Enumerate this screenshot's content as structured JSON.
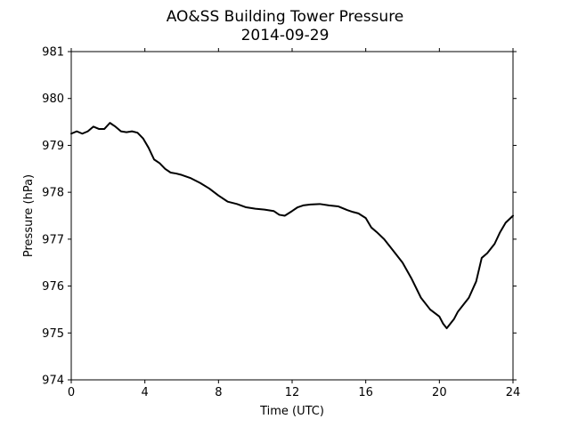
{
  "chart_data": {
    "type": "line",
    "title": "AO&SS Building Tower Pressure",
    "subtitle": "2014-09-29",
    "xlabel": "Time (UTC)",
    "ylabel": "Pressure (hPa)",
    "xlim": [
      0,
      24
    ],
    "ylim": [
      974,
      981
    ],
    "xticks": [
      0,
      4,
      8,
      12,
      16,
      20,
      24
    ],
    "yticks": [
      974,
      975,
      976,
      977,
      978,
      979,
      980,
      981
    ],
    "grid": false,
    "line_color": "#000000",
    "series": [
      {
        "x": [
          0,
          0.3,
          0.6,
          0.9,
          1.2,
          1.5,
          1.8,
          2.1,
          2.4,
          2.7,
          3.0,
          3.3,
          3.6,
          3.9,
          4.2,
          4.5,
          4.8,
          5.1,
          5.4,
          5.7,
          6.0,
          6.5,
          7.0,
          7.5,
          8.0,
          8.5,
          9.0,
          9.5,
          10.0,
          10.5,
          11.0,
          11.3,
          11.6,
          12.0,
          12.3,
          12.6,
          13.0,
          13.5,
          14.0,
          14.5,
          15.0,
          15.3,
          15.6,
          16.0,
          16.3,
          16.6,
          17.0,
          17.5,
          18.0,
          18.5,
          19.0,
          19.5,
          20.0,
          20.2,
          20.4,
          20.6,
          20.8,
          21.0,
          21.3,
          21.6,
          22.0,
          22.3,
          22.6,
          23.0,
          23.3,
          23.6,
          24.0
        ],
        "y": [
          979.25,
          979.3,
          979.25,
          979.3,
          979.4,
          979.35,
          979.35,
          979.48,
          979.4,
          979.3,
          979.28,
          979.3,
          979.27,
          979.15,
          978.95,
          978.7,
          978.62,
          978.5,
          978.42,
          978.4,
          978.37,
          978.3,
          978.2,
          978.08,
          977.93,
          977.8,
          977.75,
          977.68,
          977.65,
          977.63,
          977.6,
          977.52,
          977.5,
          977.6,
          977.68,
          977.72,
          977.74,
          977.75,
          977.72,
          977.7,
          977.62,
          977.58,
          977.55,
          977.45,
          977.25,
          977.15,
          977.0,
          976.75,
          976.5,
          976.15,
          975.75,
          975.5,
          975.35,
          975.2,
          975.1,
          975.2,
          975.3,
          975.45,
          975.6,
          975.75,
          976.1,
          976.6,
          976.7,
          976.9,
          977.15,
          977.35,
          977.5
        ]
      }
    ]
  }
}
